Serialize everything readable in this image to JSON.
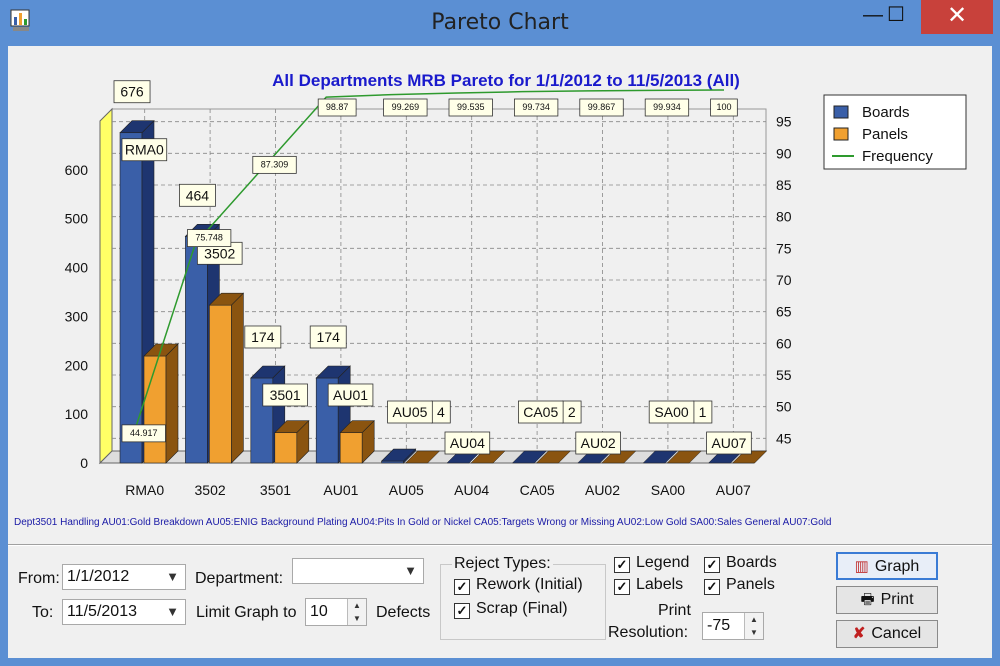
{
  "window": {
    "title": "Pareto Chart",
    "controls": [
      "minimize",
      "maximize",
      "close"
    ]
  },
  "chart_data": {
    "type": "bar",
    "title": "All Departments MRB Pareto for 1/1/2012 to 11/5/2013 (All)",
    "categories": [
      "RMA0",
      "3502",
      "3501",
      "AU01",
      "AU05",
      "AU04",
      "CA05",
      "AU02",
      "SA00",
      "AU07"
    ],
    "series": [
      {
        "name": "Boards",
        "values": [
          676,
          464,
          174,
          174,
          4,
          0,
          2,
          0,
          1,
          0
        ]
      },
      {
        "name": "Panels",
        "values": [
          219,
          323,
          62,
          62,
          0,
          0,
          0,
          0,
          0,
          0
        ]
      },
      {
        "name": "Frequency",
        "type": "line",
        "values": [
          44.917,
          75.748,
          87.309,
          98.87,
          99.269,
          99.535,
          99.734,
          99.867,
          99.934,
          100
        ]
      }
    ],
    "bar_labels": [
      "676",
      "464",
      "174",
      "174",
      "4",
      "",
      "2",
      "",
      "1",
      ""
    ],
    "category_callouts": [
      "RMA0",
      "3502",
      "3501",
      "AU01",
      "AU05",
      "AU04",
      "CA05",
      "AU02",
      "SA00",
      "AU07"
    ],
    "frequency_labels": [
      "44.917",
      "75.748",
      "87.309",
      "98.87",
      "99.269",
      "99.535",
      "99.734",
      "99.867",
      "99.934",
      "100"
    ],
    "y_left": {
      "ticks": [
        0,
        100,
        200,
        300,
        400,
        500,
        600
      ],
      "range": [
        0,
        700
      ]
    },
    "y_right": {
      "ticks": [
        45,
        50,
        55,
        60,
        65,
        70,
        75,
        80,
        85,
        90,
        95
      ],
      "range": [
        43,
        97
      ]
    },
    "legend": {
      "placement": "top-right",
      "entries": [
        "Boards",
        "Panels",
        "Frequency"
      ]
    },
    "grid": true,
    "colors": {
      "boards": "#3a5fa8",
      "panels": "#f0a030",
      "frequency": "#2e9a2e",
      "title": "#1a1acc",
      "wall": "#ffff66"
    }
  },
  "footnote": "Dept3501 Handling AU01:Gold Breakdown AU05:ENIG Background Plating AU04:Pits In Gold or Nickel CA05:Targets Wrong or Missing AU02:Low Gold SA00:Sales General AU07:Gold",
  "controls": {
    "from_label": "From:",
    "from_value": "1/1/2012",
    "to_label": "To:",
    "to_value": "11/5/2013",
    "department_label": "Department:",
    "department_value": "",
    "limit_label": "Limit Graph to",
    "limit_value": "10",
    "defects_label": "Defects",
    "reject_types_label": "Reject Types:",
    "rework_label": "Rework (Initial)",
    "scrap_label": "Scrap (Final)",
    "legend_label": "Legend",
    "labels_label": "Labels",
    "boards_label": "Boards",
    "panels_label": "Panels",
    "print_res_label_1": "Print",
    "print_res_label_2": "Resolution:",
    "print_res_value": "-75",
    "graph_button": "Graph",
    "print_button": "Print",
    "cancel_button": "Cancel"
  }
}
